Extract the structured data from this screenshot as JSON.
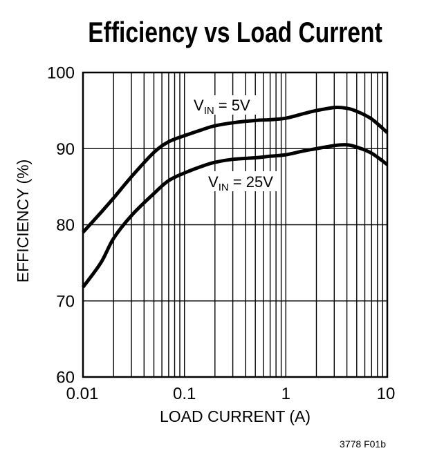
{
  "figure": {
    "title": "Efficiency vs Load Current",
    "note": "3778 F01b"
  },
  "chart_data": {
    "type": "line",
    "title": "Efficiency vs Load Current",
    "xlabel": "LOAD CURRENT (A)",
    "ylabel": "EFFICIENCY (%)",
    "x_scale": "log",
    "xlim": [
      0.01,
      10
    ],
    "ylim": [
      60,
      100
    ],
    "x_ticks": [
      0.01,
      0.1,
      1,
      10
    ],
    "x_tick_labels": [
      "0.01",
      "0.1",
      "1",
      "10"
    ],
    "y_ticks": [
      60,
      70,
      80,
      90,
      100
    ],
    "y_tick_labels": [
      "60",
      "70",
      "80",
      "90",
      "100"
    ],
    "grid": {
      "x": "log-minor-full-height",
      "y": "major-only"
    },
    "legend": "inline-curve-labels",
    "ink_color": "#000000",
    "background_color": "#ffffff",
    "series": [
      {
        "name": "VIN = 5V",
        "label": {
          "prefix": "V",
          "sub": "IN",
          "rest": " = 5V"
        },
        "points": [
          [
            0.01,
            79.0
          ],
          [
            0.015,
            81.6
          ],
          [
            0.02,
            83.5
          ],
          [
            0.03,
            86.3
          ],
          [
            0.05,
            89.5
          ],
          [
            0.07,
            90.9
          ],
          [
            0.1,
            91.7
          ],
          [
            0.15,
            92.5
          ],
          [
            0.2,
            93.0
          ],
          [
            0.3,
            93.4
          ],
          [
            0.5,
            93.7
          ],
          [
            0.7,
            93.8
          ],
          [
            1,
            94.0
          ],
          [
            1.5,
            94.6
          ],
          [
            2,
            95.0
          ],
          [
            3,
            95.4
          ],
          [
            4,
            95.3
          ],
          [
            5,
            94.9
          ],
          [
            7,
            93.9
          ],
          [
            10,
            92.1
          ]
        ]
      },
      {
        "name": "VIN = 25V",
        "label": {
          "prefix": "V",
          "sub": "IN",
          "rest": " = 25V"
        },
        "points": [
          [
            0.01,
            71.8
          ],
          [
            0.015,
            75.0
          ],
          [
            0.02,
            78.2
          ],
          [
            0.03,
            81.2
          ],
          [
            0.05,
            84.1
          ],
          [
            0.07,
            85.8
          ],
          [
            0.1,
            86.8
          ],
          [
            0.15,
            87.7
          ],
          [
            0.2,
            88.2
          ],
          [
            0.3,
            88.6
          ],
          [
            0.5,
            88.8
          ],
          [
            0.7,
            89.0
          ],
          [
            1,
            89.2
          ],
          [
            1.5,
            89.7
          ],
          [
            2,
            90.0
          ],
          [
            3,
            90.4
          ],
          [
            4,
            90.5
          ],
          [
            5,
            90.2
          ],
          [
            7,
            89.4
          ],
          [
            10,
            87.9
          ]
        ]
      }
    ]
  }
}
